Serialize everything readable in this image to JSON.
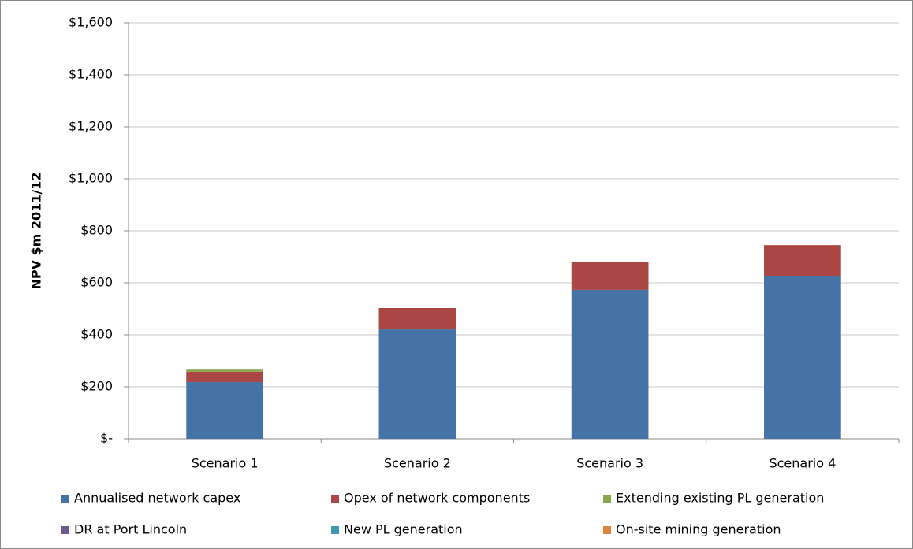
{
  "chart_data": {
    "type": "stacked_bar",
    "y_label": "NPV $m 2011/12",
    "categories": [
      "Scenario 1",
      "Scenario 2",
      "Scenario 3",
      "Scenario 4"
    ],
    "series": [
      {
        "name": "Annualised network capex",
        "color": "#4572a7",
        "values": [
          218,
          421,
          573,
          627
        ]
      },
      {
        "name": "Opex of network components",
        "color": "#aa4643",
        "values": [
          40,
          82,
          106,
          118
        ]
      },
      {
        "name": "Extending existing PL generation",
        "color": "#89a54e",
        "values": [
          8,
          0,
          0,
          0
        ]
      },
      {
        "name": "DR at Port Lincoln",
        "color": "#71588f",
        "values": [
          0,
          0,
          0,
          0
        ]
      },
      {
        "name": "New PL generation",
        "color": "#4198af",
        "values": [
          0,
          0,
          0,
          0
        ]
      },
      {
        "name": "On-site mining generation",
        "color": "#db843d",
        "values": [
          0,
          0,
          0,
          0
        ]
      }
    ],
    "ylim": [
      0,
      1600
    ],
    "yticks": [
      {
        "value": 0,
        "label": "$-"
      },
      {
        "value": 200,
        "label": "$200"
      },
      {
        "value": 400,
        "label": "$400"
      },
      {
        "value": 600,
        "label": "$600"
      },
      {
        "value": 800,
        "label": "$800"
      },
      {
        "value": 1000,
        "label": "$1,000"
      },
      {
        "value": 1200,
        "label": "$1,200"
      },
      {
        "value": 1400,
        "label": "$1,400"
      },
      {
        "value": 1600,
        "label": "$1,600"
      }
    ],
    "grid": true
  }
}
